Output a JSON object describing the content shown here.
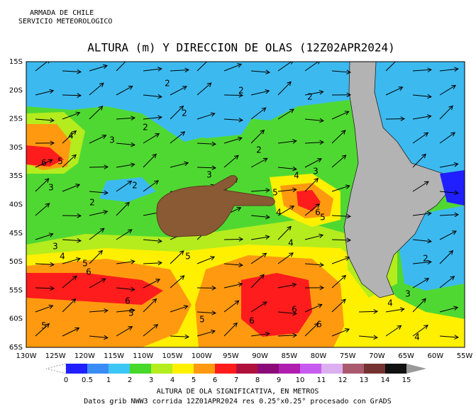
{
  "header": {
    "organization": [
      "ARMADA DE CHILE",
      "SERVICIO METEOROLOGICO"
    ],
    "title": "ALTURA (m) Y DIRECCION DE OLAS (12Z02APR2024)"
  },
  "map": {
    "latitude_labels": [
      "15S",
      "20S",
      "25S",
      "30S",
      "35S",
      "40S",
      "45S",
      "50S",
      "55S",
      "60S",
      "65S"
    ],
    "longitude_labels": [
      "130W",
      "125W",
      "120W",
      "115W",
      "110W",
      "105W",
      "100W",
      "95W",
      "90W",
      "85W",
      "80W",
      "75W",
      "70W",
      "65W",
      "60W",
      "55W"
    ],
    "contour_labels": [
      2,
      2,
      2,
      2,
      2,
      2,
      2,
      2,
      2,
      3,
      3,
      3,
      3,
      3,
      3,
      4,
      4,
      4,
      4,
      4,
      4,
      4,
      5,
      5,
      5,
      5,
      5,
      5,
      5,
      5,
      6,
      6,
      6,
      6,
      6,
      6,
      6
    ]
  },
  "legend": {
    "labels": [
      0,
      0.5,
      1,
      2,
      3,
      4,
      5,
      6,
      7,
      8,
      9,
      10,
      11,
      12,
      13,
      14,
      15
    ],
    "colors": [
      "#1f1fff",
      "#3a8cf5",
      "#3cc6f5",
      "#46d82a",
      "#b4ec1e",
      "#fff000",
      "#ff9a10",
      "#ff1c1c",
      "#b0103c",
      "#8a0a78",
      "#b01eb0",
      "#c85cf0",
      "#dcb0f0",
      "#aa5a6e",
      "#743232",
      "#111111"
    ],
    "caption": "ALTURA DE OLA SIGNIFICATIVA, EN METROS"
  },
  "footer": "Datos grib NWW3 corrida 12Z01APR2024 res 0.25°x0.25° procesado con GrADS"
}
